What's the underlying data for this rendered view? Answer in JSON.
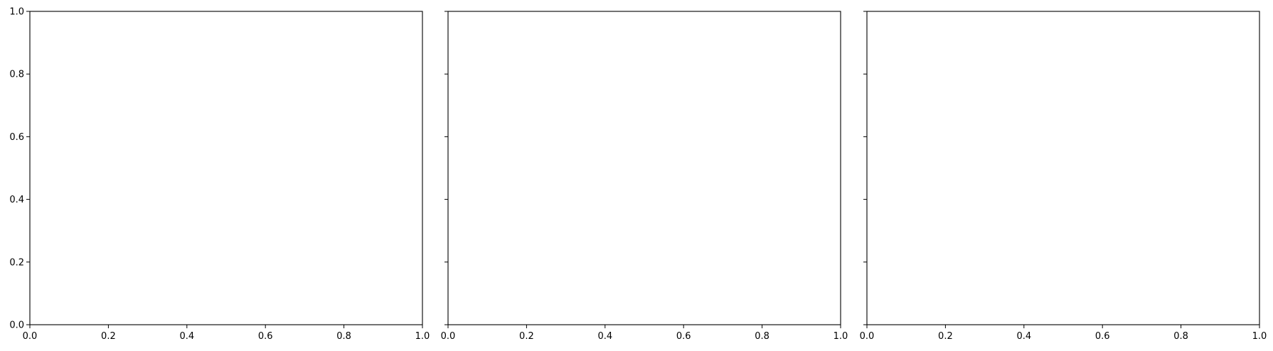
{
  "chart_data": [
    {
      "type": "scatter",
      "title": "",
      "xlabel": "",
      "ylabel": "",
      "xlim": [
        0,
        1
      ],
      "ylim": [
        0,
        1
      ],
      "xticks": [
        "0.0",
        "0.2",
        "0.4",
        "0.6",
        "0.8",
        "1.0"
      ],
      "yticks": [
        "0.0",
        "0.2",
        "0.4",
        "0.6",
        "0.8",
        "1.0"
      ],
      "show_ytick_labels": true,
      "grid": false,
      "series": []
    },
    {
      "type": "scatter",
      "title": "",
      "xlabel": "",
      "ylabel": "",
      "xlim": [
        0,
        1
      ],
      "ylim": [
        0,
        1
      ],
      "xticks": [
        "0.0",
        "0.2",
        "0.4",
        "0.6",
        "0.8",
        "1.0"
      ],
      "yticks": [
        "0.0",
        "0.2",
        "0.4",
        "0.6",
        "0.8",
        "1.0"
      ],
      "show_ytick_labels": false,
      "grid": false,
      "series": []
    },
    {
      "type": "scatter",
      "title": "",
      "xlabel": "",
      "ylabel": "",
      "xlim": [
        0,
        1
      ],
      "ylim": [
        0,
        1
      ],
      "xticks": [
        "0.0",
        "0.2",
        "0.4",
        "0.6",
        "0.8",
        "1.0"
      ],
      "yticks": [
        "0.0",
        "0.2",
        "0.4",
        "0.6",
        "0.8",
        "1.0"
      ],
      "show_ytick_labels": false,
      "grid": false,
      "series": []
    }
  ],
  "colors": {
    "axes": "#000000",
    "background": "#ffffff"
  }
}
